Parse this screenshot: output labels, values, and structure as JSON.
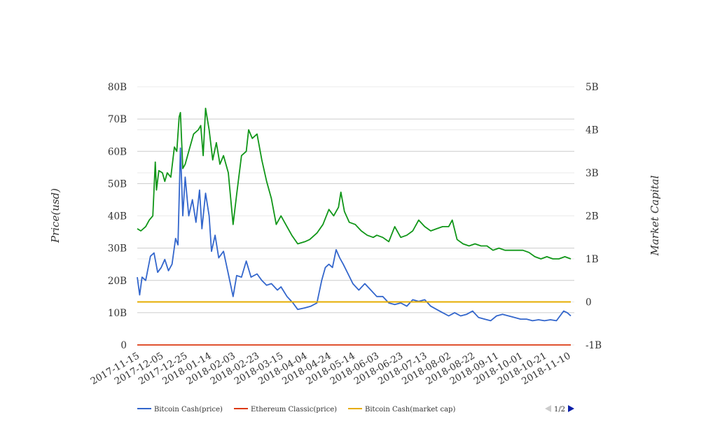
{
  "chart_data": {
    "type": "line",
    "title": "",
    "ylabel": "Price(usd)",
    "y2label": "Market Capital",
    "x_ticks": [
      "2017-11-15",
      "2017-12-05",
      "2017-12-25",
      "2018-01-14",
      "2018-02-03",
      "2018-02-23",
      "2018-03-15",
      "2018-04-04",
      "2018-04-24",
      "2018-05-14",
      "2018-06-03",
      "2018-06-23",
      "2018-07-13",
      "2018-08-02",
      "2018-08-22",
      "2018-09-11",
      "2018-10-01",
      "2018-10-21",
      "2018-11-10"
    ],
    "ylim": [
      0,
      80000000000
    ],
    "y_ticks": [
      "0",
      "10B",
      "20B",
      "30B",
      "40B",
      "50B",
      "60B",
      "70B",
      "80B"
    ],
    "y2lim": [
      -1000000000,
      5000000000
    ],
    "y2_ticks": [
      "-1B",
      "0",
      "1B",
      "2B",
      "3B",
      "4B",
      "5B"
    ],
    "grid": true,
    "legend_position": "bottom",
    "legend_page": "1/2",
    "series": [
      {
        "name": "Bitcoin Cash(price)",
        "color": "#3366cc",
        "axis": "left",
        "points": [
          [
            "2017-11-15",
            21000000000.0
          ],
          [
            "2017-11-17",
            15500000000.0
          ],
          [
            "2017-11-19",
            21000000000.0
          ],
          [
            "2017-11-22",
            20000000000.0
          ],
          [
            "2017-11-26",
            27500000000.0
          ],
          [
            "2017-11-29",
            28500000000.0
          ],
          [
            "2017-12-02",
            22500000000.0
          ],
          [
            "2017-12-05",
            24000000000.0
          ],
          [
            "2017-12-08",
            26500000000.0
          ],
          [
            "2017-12-11",
            23000000000.0
          ],
          [
            "2017-12-14",
            25000000000.0
          ],
          [
            "2017-12-17",
            33000000000.0
          ],
          [
            "2017-12-19",
            31000000000.0
          ],
          [
            "2017-12-21",
            61000000000.0
          ],
          [
            "2017-12-23",
            40000000000.0
          ],
          [
            "2017-12-25",
            52000000000.0
          ],
          [
            "2017-12-28",
            40000000000.0
          ],
          [
            "2017-12-31",
            45000000000.0
          ],
          [
            "2018-01-03",
            38000000000.0
          ],
          [
            "2018-01-06",
            48000000000.0
          ],
          [
            "2018-01-08",
            36000000000.0
          ],
          [
            "2018-01-11",
            47000000000.0
          ],
          [
            "2018-01-14",
            40000000000.0
          ],
          [
            "2018-01-16",
            29000000000.0
          ],
          [
            "2018-01-19",
            34000000000.0
          ],
          [
            "2018-01-22",
            27000000000.0
          ],
          [
            "2018-01-26",
            29000000000.0
          ],
          [
            "2018-01-30",
            22000000000.0
          ],
          [
            "2018-02-03",
            15000000000.0
          ],
          [
            "2018-02-06",
            21500000000.0
          ],
          [
            "2018-02-10",
            21000000000.0
          ],
          [
            "2018-02-14",
            26000000000.0
          ],
          [
            "2018-02-18",
            21000000000.0
          ],
          [
            "2018-02-23",
            22000000000.0
          ],
          [
            "2018-02-27",
            20000000000.0
          ],
          [
            "2018-03-03",
            18500000000.0
          ],
          [
            "2018-03-07",
            19000000000.0
          ],
          [
            "2018-03-12",
            17000000000.0
          ],
          [
            "2018-03-15",
            18000000000.0
          ],
          [
            "2018-03-20",
            15000000000.0
          ],
          [
            "2018-03-25",
            13000000000.0
          ],
          [
            "2018-03-29",
            11000000000.0
          ],
          [
            "2018-04-04",
            11500000000.0
          ],
          [
            "2018-04-09",
            12000000000.0
          ],
          [
            "2018-04-14",
            13000000000.0
          ],
          [
            "2018-04-18",
            20000000000.0
          ],
          [
            "2018-04-21",
            24000000000.0
          ],
          [
            "2018-04-24",
            25000000000.0
          ],
          [
            "2018-04-27",
            24000000000.0
          ],
          [
            "2018-04-30",
            29500000000.0
          ],
          [
            "2018-05-03",
            27000000000.0
          ],
          [
            "2018-05-06",
            25000000000.0
          ],
          [
            "2018-05-10",
            22000000000.0
          ],
          [
            "2018-05-14",
            19000000000.0
          ],
          [
            "2018-05-19",
            17000000000.0
          ],
          [
            "2018-05-24",
            19000000000.0
          ],
          [
            "2018-05-29",
            17000000000.0
          ],
          [
            "2018-06-03",
            15000000000.0
          ],
          [
            "2018-06-08",
            15000000000.0
          ],
          [
            "2018-06-13",
            13000000000.0
          ],
          [
            "2018-06-18",
            12500000000.0
          ],
          [
            "2018-06-23",
            13000000000.0
          ],
          [
            "2018-06-28",
            12000000000.0
          ],
          [
            "2018-07-03",
            14000000000.0
          ],
          [
            "2018-07-08",
            13500000000.0
          ],
          [
            "2018-07-13",
            14000000000.0
          ],
          [
            "2018-07-18",
            12000000000.0
          ],
          [
            "2018-07-23",
            11000000000.0
          ],
          [
            "2018-07-28",
            10000000000.0
          ],
          [
            "2018-08-02",
            9000000000.0
          ],
          [
            "2018-08-07",
            10000000000.0
          ],
          [
            "2018-08-12",
            9000000000.0
          ],
          [
            "2018-08-17",
            9500000000.0
          ],
          [
            "2018-08-22",
            10500000000.0
          ],
          [
            "2018-08-27",
            8500000000.0
          ],
          [
            "2018-09-01",
            8000000000.0
          ],
          [
            "2018-09-06",
            7500000000.0
          ],
          [
            "2018-09-11",
            9000000000.0
          ],
          [
            "2018-09-16",
            9500000000.0
          ],
          [
            "2018-09-21",
            9000000000.0
          ],
          [
            "2018-09-26",
            8500000000.0
          ],
          [
            "2018-10-01",
            8000000000.0
          ],
          [
            "2018-10-06",
            8000000000.0
          ],
          [
            "2018-10-11",
            7500000000.0
          ],
          [
            "2018-10-16",
            7800000000.0
          ],
          [
            "2018-10-21",
            7500000000.0
          ],
          [
            "2018-10-26",
            7800000000.0
          ],
          [
            "2018-10-31",
            7500000000.0
          ],
          [
            "2018-11-03",
            9000000000.0
          ],
          [
            "2018-11-06",
            10500000000.0
          ],
          [
            "2018-11-09",
            10000000000.0
          ],
          [
            "2018-11-12",
            9000000000.0
          ]
        ]
      },
      {
        "name": "Ethereum Classic(price)",
        "color": "#dc3912",
        "axis": "left",
        "points": [
          [
            "2017-11-15",
            0
          ],
          [
            "2018-11-12",
            0
          ]
        ]
      },
      {
        "name": "Bitcoin Cash(market cap)",
        "color": "#e6ac00",
        "axis": "right",
        "points": [
          [
            "2017-11-15",
            0
          ],
          [
            "2018-11-12",
            0
          ]
        ]
      },
      {
        "name": "",
        "color": "#109618",
        "axis": "right",
        "points": [
          [
            "2017-11-15",
            1700000000.0
          ],
          [
            "2017-11-18",
            1650000000.0
          ],
          [
            "2017-11-22",
            1750000000.0
          ],
          [
            "2017-11-25",
            1900000000.0
          ],
          [
            "2017-11-28",
            2000000000.0
          ],
          [
            "2017-11-30",
            3250000000.0
          ],
          [
            "2017-12-01",
            2600000000.0
          ],
          [
            "2017-12-03",
            3050000000.0
          ],
          [
            "2017-12-06",
            3000000000.0
          ],
          [
            "2017-12-08",
            2800000000.0
          ],
          [
            "2017-12-10",
            3000000000.0
          ],
          [
            "2017-12-13",
            2900000000.0
          ],
          [
            "2017-12-16",
            3600000000.0
          ],
          [
            "2017-12-18",
            3500000000.0
          ],
          [
            "2017-12-20",
            4300000000.0
          ],
          [
            "2017-12-21",
            4400000000.0
          ],
          [
            "2017-12-23",
            3100000000.0
          ],
          [
            "2017-12-25",
            3200000000.0
          ],
          [
            "2017-12-28",
            3500000000.0
          ],
          [
            "2018-01-01",
            3900000000.0
          ],
          [
            "2018-01-05",
            4000000000.0
          ],
          [
            "2018-01-07",
            4100000000.0
          ],
          [
            "2018-01-09",
            3400000000.0
          ],
          [
            "2018-01-11",
            4500000000.0
          ],
          [
            "2018-01-14",
            4000000000.0
          ],
          [
            "2018-01-17",
            3300000000.0
          ],
          [
            "2018-01-20",
            3700000000.0
          ],
          [
            "2018-01-23",
            3200000000.0
          ],
          [
            "2018-01-26",
            3400000000.0
          ],
          [
            "2018-01-30",
            3000000000.0
          ],
          [
            "2018-02-03",
            1800000000.0
          ],
          [
            "2018-02-06",
            2500000000.0
          ],
          [
            "2018-02-10",
            3400000000.0
          ],
          [
            "2018-02-14",
            3500000000.0
          ],
          [
            "2018-02-16",
            4000000000.0
          ],
          [
            "2018-02-19",
            3800000000.0
          ],
          [
            "2018-02-23",
            3900000000.0
          ],
          [
            "2018-02-27",
            3300000000.0
          ],
          [
            "2018-03-03",
            2800000000.0
          ],
          [
            "2018-03-07",
            2400000000.0
          ],
          [
            "2018-03-11",
            1800000000.0
          ],
          [
            "2018-03-15",
            2000000000.0
          ],
          [
            "2018-03-19",
            1800000000.0
          ],
          [
            "2018-03-24",
            1550000000.0
          ],
          [
            "2018-03-29",
            1350000000.0
          ],
          [
            "2018-04-04",
            1400000000.0
          ],
          [
            "2018-04-08",
            1450000000.0
          ],
          [
            "2018-04-14",
            1600000000.0
          ],
          [
            "2018-04-19",
            1800000000.0
          ],
          [
            "2018-04-24",
            2150000000.0
          ],
          [
            "2018-04-28",
            2000000000.0
          ],
          [
            "2018-05-02",
            2200000000.0
          ],
          [
            "2018-05-04",
            2550000000.0
          ],
          [
            "2018-05-07",
            2100000000.0
          ],
          [
            "2018-05-11",
            1850000000.0
          ],
          [
            "2018-05-16",
            1800000000.0
          ],
          [
            "2018-05-21",
            1650000000.0
          ],
          [
            "2018-05-26",
            1550000000.0
          ],
          [
            "2018-05-31",
            1500000000.0
          ],
          [
            "2018-06-03",
            1550000000.0
          ],
          [
            "2018-06-08",
            1500000000.0
          ],
          [
            "2018-06-13",
            1400000000.0
          ],
          [
            "2018-06-18",
            1750000000.0
          ],
          [
            "2018-06-23",
            1500000000.0
          ],
          [
            "2018-06-28",
            1550000000.0
          ],
          [
            "2018-07-03",
            1650000000.0
          ],
          [
            "2018-07-08",
            1900000000.0
          ],
          [
            "2018-07-13",
            1750000000.0
          ],
          [
            "2018-07-18",
            1650000000.0
          ],
          [
            "2018-07-23",
            1700000000.0
          ],
          [
            "2018-07-28",
            1750000000.0
          ],
          [
            "2018-08-02",
            1750000000.0
          ],
          [
            "2018-08-05",
            1900000000.0
          ],
          [
            "2018-08-09",
            1450000000.0
          ],
          [
            "2018-08-14",
            1350000000.0
          ],
          [
            "2018-08-19",
            1300000000.0
          ],
          [
            "2018-08-24",
            1350000000.0
          ],
          [
            "2018-08-29",
            1300000000.0
          ],
          [
            "2018-09-03",
            1300000000.0
          ],
          [
            "2018-09-08",
            1200000000.0
          ],
          [
            "2018-09-13",
            1250000000.0
          ],
          [
            "2018-09-18",
            1200000000.0
          ],
          [
            "2018-09-23",
            1200000000.0
          ],
          [
            "2018-09-28",
            1200000000.0
          ],
          [
            "2018-10-03",
            1200000000.0
          ],
          [
            "2018-10-08",
            1150000000.0
          ],
          [
            "2018-10-13",
            1050000000.0
          ],
          [
            "2018-10-18",
            1000000000.0
          ],
          [
            "2018-10-23",
            1050000000.0
          ],
          [
            "2018-10-28",
            1000000000.0
          ],
          [
            "2018-11-02",
            1000000000.0
          ],
          [
            "2018-11-07",
            1050000000.0
          ],
          [
            "2018-11-12",
            1000000000.0
          ]
        ]
      }
    ]
  }
}
